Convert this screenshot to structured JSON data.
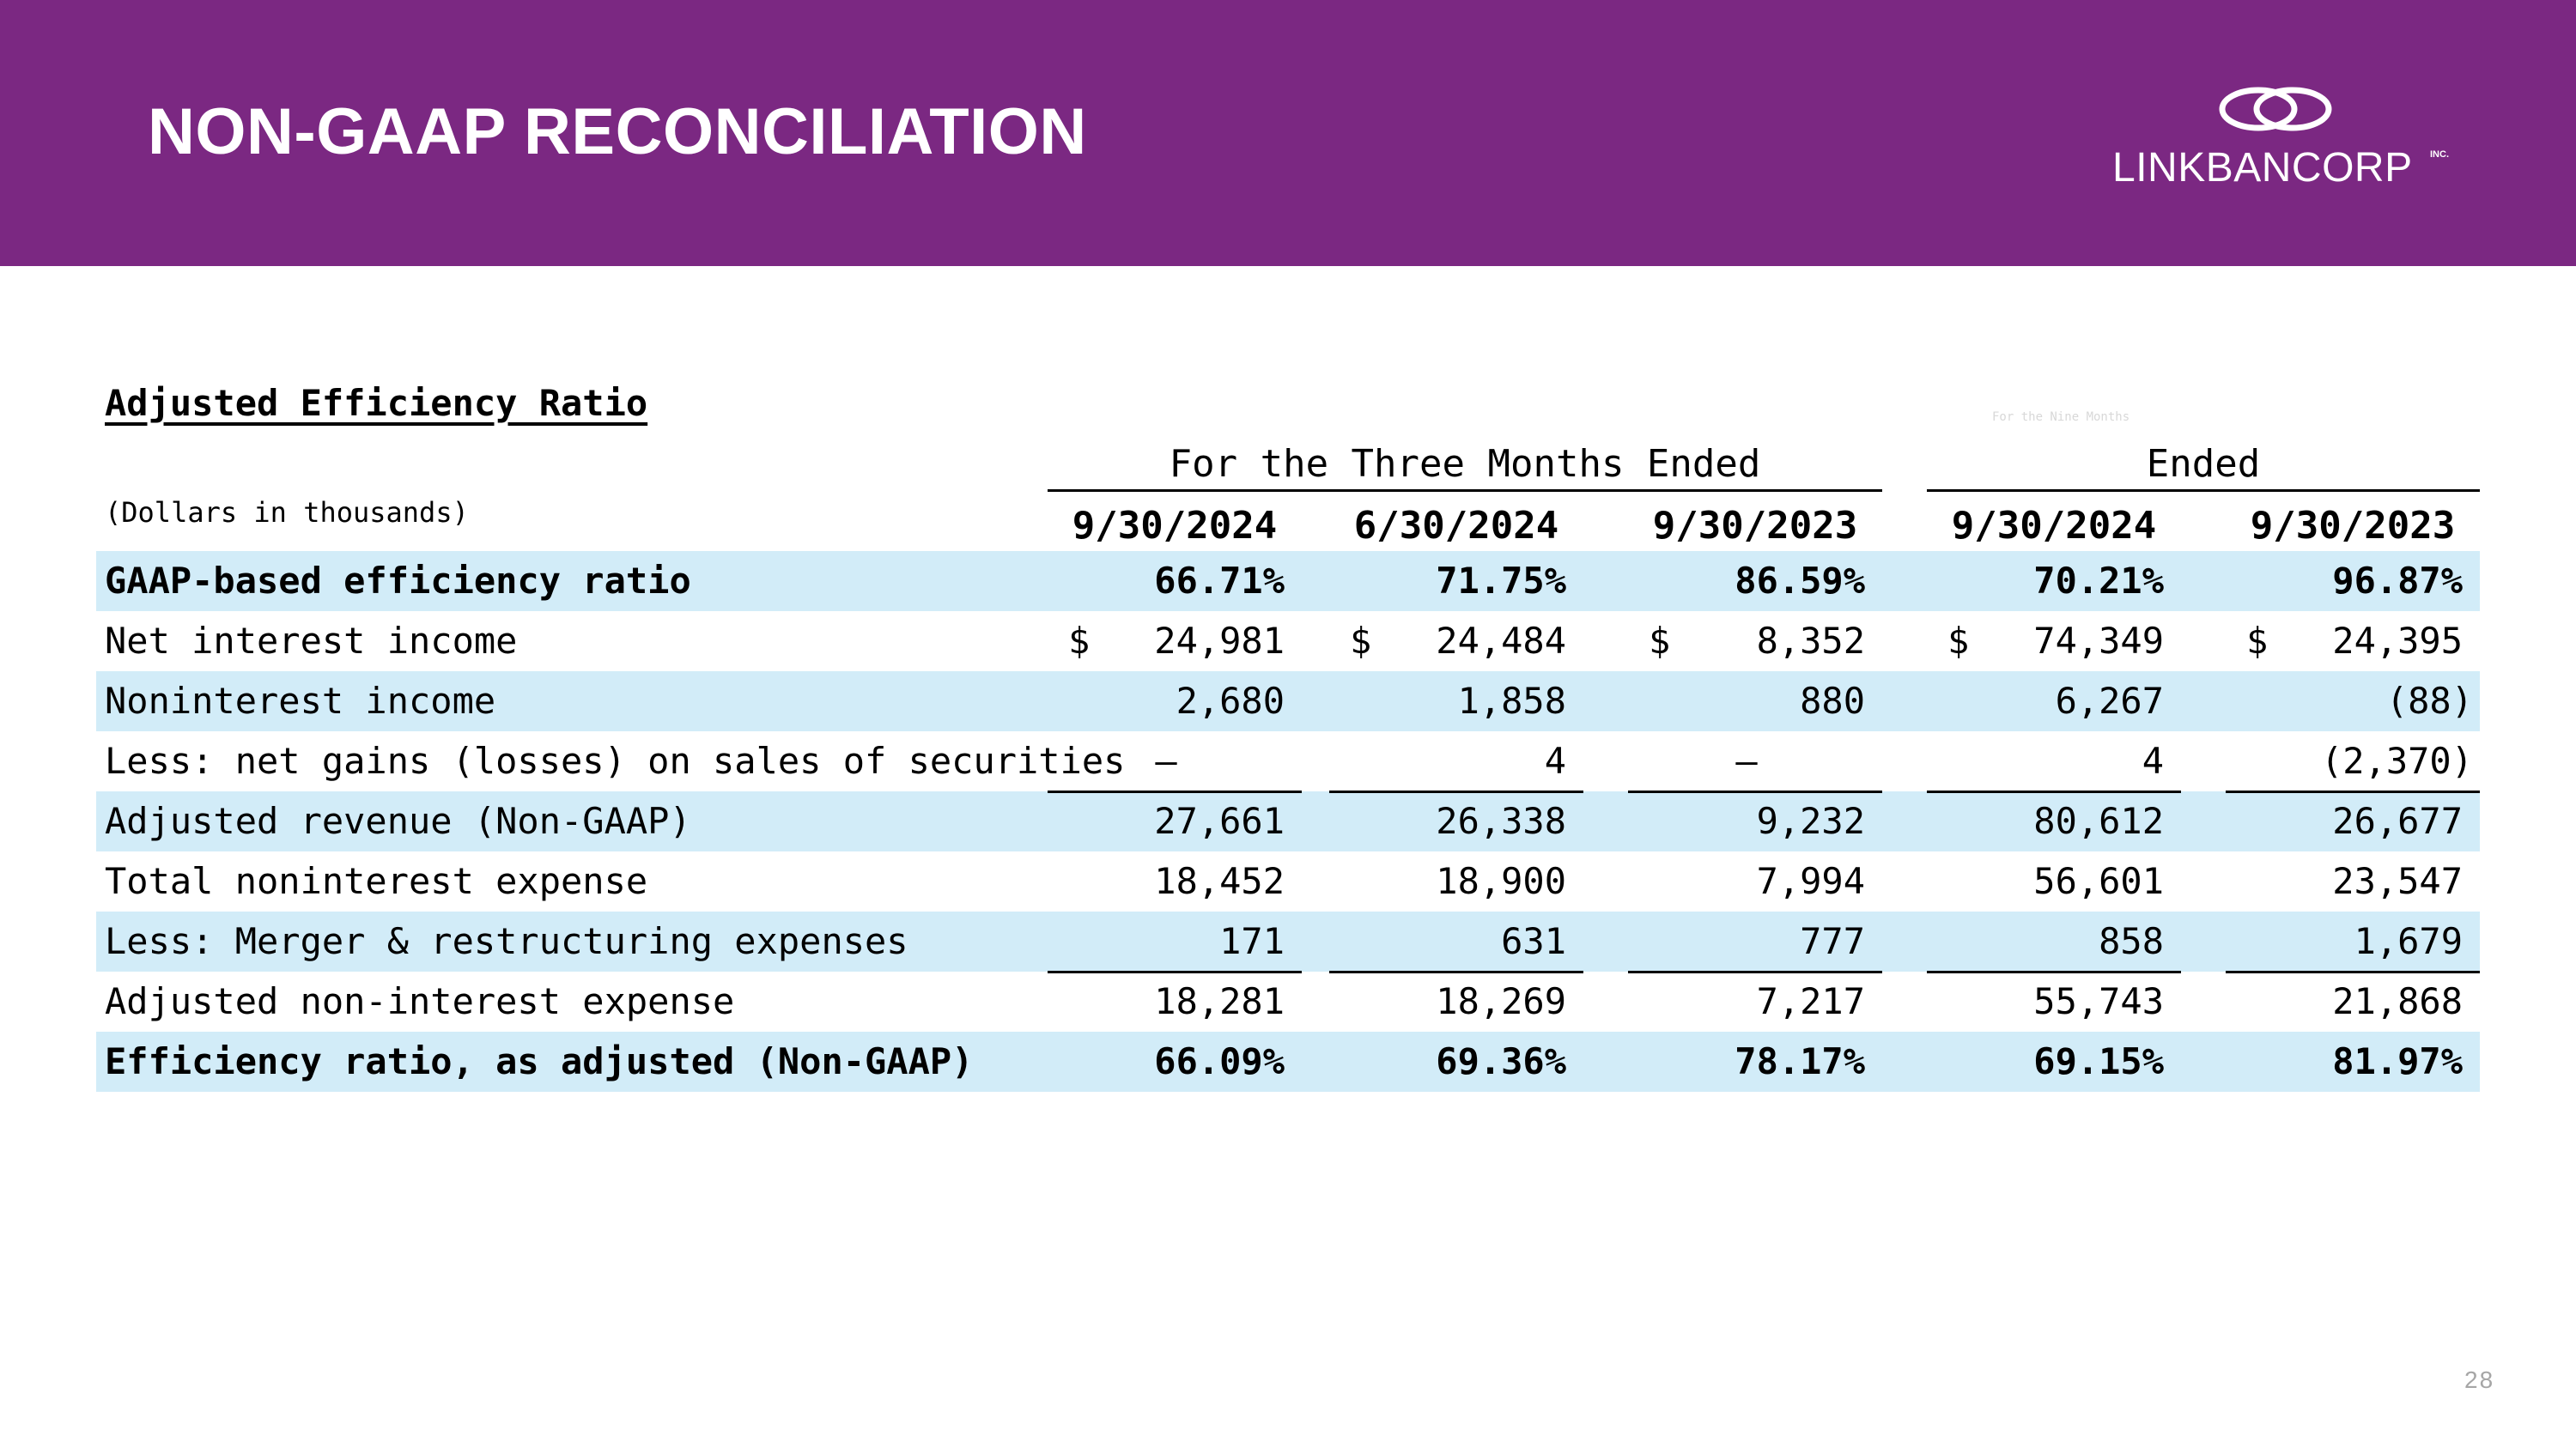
{
  "header": {
    "title": "NON-GAAP RECONCILIATION",
    "logo_text": "LINKBANCORP",
    "logo_inc": "INC."
  },
  "colors": {
    "banner": "#7B2882",
    "row_shade": "#D2ECF8"
  },
  "table": {
    "title": "Adjusted Efficiency Ratio",
    "units_label": "(Dollars in thousands)",
    "faded_label": "For the Nine Months",
    "group_headers": [
      "For the Three Months Ended",
      "Ended"
    ],
    "columns": [
      "9/30/2024",
      "6/30/2024",
      "9/30/2023",
      "9/30/2024",
      "9/30/2023"
    ],
    "rows": [
      {
        "label": "GAAP-based efficiency ratio",
        "values": [
          "66.71%",
          "71.75%",
          "86.59%",
          "70.21%",
          "96.87%"
        ]
      },
      {
        "label": "Net interest income",
        "currency": "$",
        "values": [
          "24,981",
          "24,484",
          "8,352",
          "74,349",
          "24,395"
        ]
      },
      {
        "label": "Noninterest income",
        "values": [
          "2,680",
          "1,858",
          "880",
          "6,267",
          "(88)"
        ]
      },
      {
        "label": "Less: net gains (losses) on sales of securities",
        "values": [
          "–",
          "4",
          "–",
          "4",
          "(2,370)"
        ]
      },
      {
        "label": "Adjusted revenue (Non-GAAP)",
        "values": [
          "27,661",
          "26,338",
          "9,232",
          "80,612",
          "26,677"
        ]
      },
      {
        "label": "Total noninterest expense",
        "values": [
          "18,452",
          "18,900",
          "7,994",
          "56,601",
          "23,547"
        ]
      },
      {
        "label": "Less: Merger & restructuring expenses",
        "values": [
          "171",
          "631",
          "777",
          "858",
          "1,679"
        ]
      },
      {
        "label": "Adjusted non-interest expense",
        "values": [
          "18,281",
          "18,269",
          "7,217",
          "55,743",
          "21,868"
        ]
      },
      {
        "label": "Efficiency ratio, as adjusted (Non-GAAP)",
        "values": [
          "66.09%",
          "69.36%",
          "78.17%",
          "69.15%",
          "81.97%"
        ]
      }
    ]
  },
  "page_number": "28"
}
